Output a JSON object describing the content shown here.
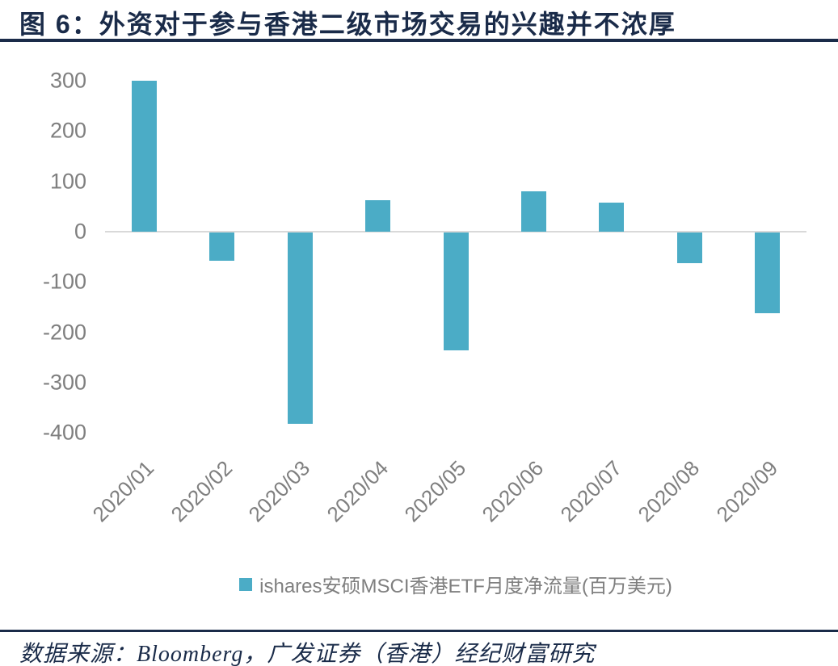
{
  "header": {
    "title": "图 6：外资对于参与香港二级市场交易的兴趣并不浓厚"
  },
  "footer": {
    "source": "数据来源：Bloomberg，广发证券（香港）经纪财富研究"
  },
  "chart_data": {
    "type": "bar",
    "title": "图 6：外资对于参与香港二级市场交易的兴趣并不浓厚",
    "categories": [
      "2020/01",
      "2020/02",
      "2020/03",
      "2020/04",
      "2020/05",
      "2020/06",
      "2020/07",
      "2020/08",
      "2020/09"
    ],
    "series": [
      {
        "name": "ishares安硕MSCI香港ETF月度净流量(百万美元)",
        "values": [
          300,
          -56,
          -380,
          63,
          -235,
          80,
          58,
          -61,
          -160
        ]
      }
    ],
    "xlabel": "",
    "ylabel": "",
    "ylim": [
      -400,
      300
    ],
    "yticks": [
      300,
      200,
      100,
      0,
      -100,
      -200,
      -300,
      -400
    ],
    "grid": false,
    "legend_position": "bottom",
    "x_tick_rotation_deg": -45,
    "colors": {
      "bar": "#4BACC6",
      "axis_line": "#D9D9D9",
      "tick_label": "#7F7F7F",
      "heading": "#1A2B49"
    }
  }
}
